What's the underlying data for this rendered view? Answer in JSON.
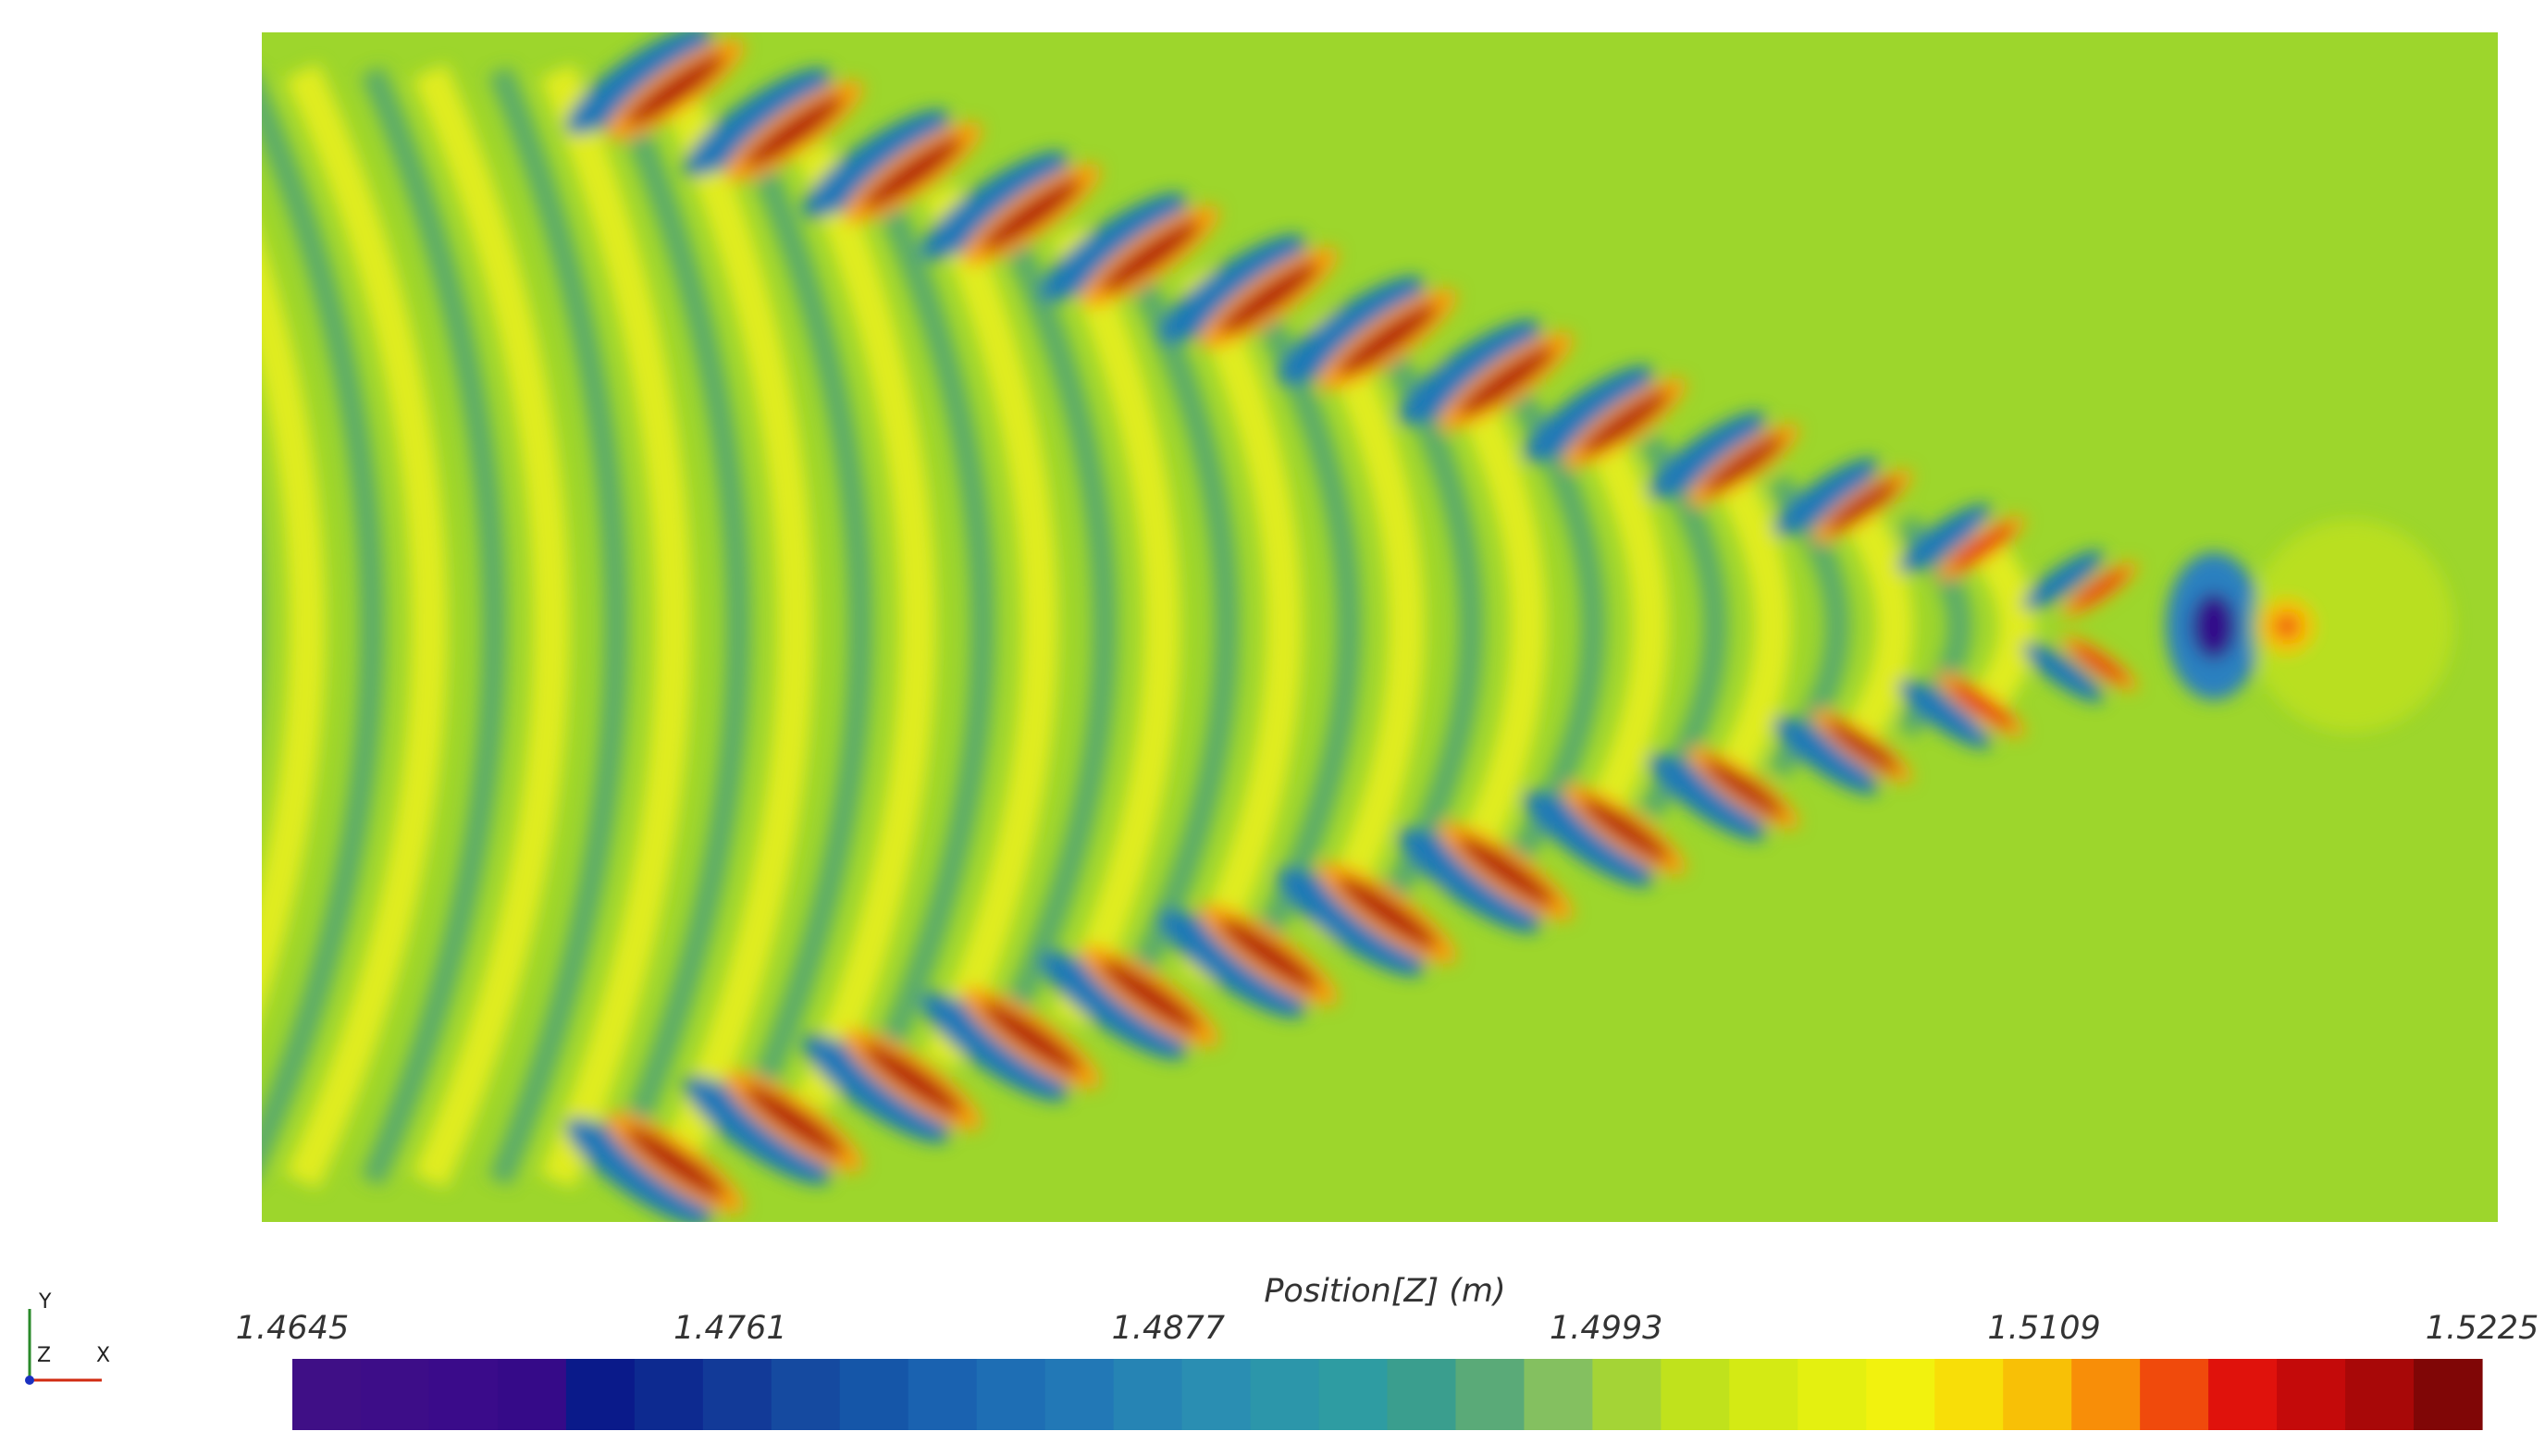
{
  "colorbar": {
    "title": "Position[Z] (m)",
    "range": [
      1.4645,
      1.5225
    ],
    "ticks": [
      1.4645,
      1.4761,
      1.4877,
      1.4993,
      1.5109,
      1.5225
    ],
    "colors": [
      "#3f0f86",
      "#3d0d88",
      "#3a0b8a",
      "#350a88",
      "#0a1a8a",
      "#0d2a90",
      "#123a98",
      "#154aa0",
      "#1556a8",
      "#1a62b0",
      "#1e6eb4",
      "#2278b6",
      "#2684b4",
      "#2a8eb2",
      "#2c96aa",
      "#2e9ca2",
      "#3a9e8e",
      "#5aaa78",
      "#84c060",
      "#a4d436",
      "#c0e21c",
      "#d4ea14",
      "#e4f010",
      "#f2f20e",
      "#f8de08",
      "#f8c006",
      "#f88e08",
      "#f04a0c",
      "#e0120c",
      "#c40a0a",
      "#a80808",
      "#800606"
    ]
  },
  "axes_triad": {
    "y": "Y",
    "z": "Z",
    "x": "X"
  }
}
